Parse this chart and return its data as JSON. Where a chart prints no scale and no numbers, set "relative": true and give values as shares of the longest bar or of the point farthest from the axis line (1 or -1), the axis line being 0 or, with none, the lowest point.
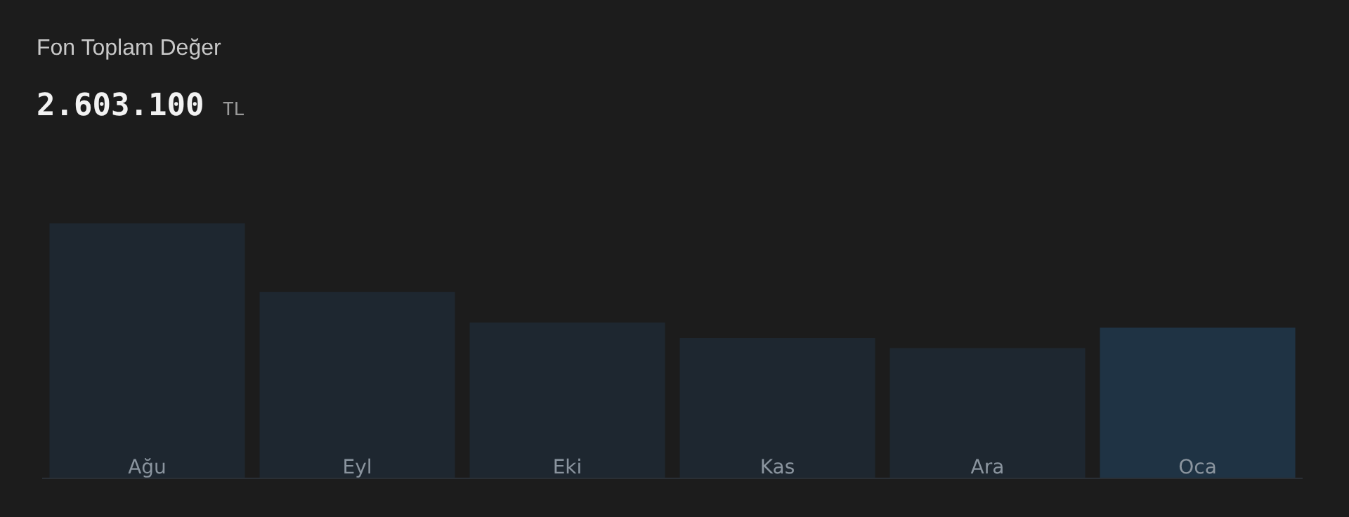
{
  "chart_data": {
    "type": "bar",
    "title": "Fon Toplam Değer",
    "subtitle": "2.603.100 TL",
    "relative": true,
    "categories": [
      "Ağu",
      "Eyl",
      "Eki",
      "Kas",
      "Ara",
      "Oca"
    ],
    "values": [
      1,
      0.73,
      0.61,
      0.55,
      0.51,
      0.59
    ],
    "colors": [
      "#1e2730",
      "#1e2730",
      "#1e2730",
      "#1e2730",
      "#1e2730",
      "#1f3344"
    ]
  }
}
